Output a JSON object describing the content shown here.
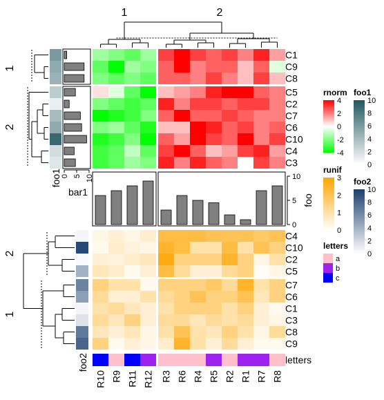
{
  "chart_data": {
    "type": "heatmap",
    "top_heatmap": {
      "column_split_labels": [
        "1",
        "2"
      ],
      "row_split_labels": [
        "1",
        "2"
      ],
      "rows_split1": [
        "C1",
        "C9",
        "C8"
      ],
      "rows_split2": [
        "C5",
        "C2",
        "C7",
        "C6",
        "C10",
        "C4",
        "C3"
      ],
      "columns_split1": [
        "R10",
        "R9",
        "R11",
        "R12"
      ],
      "columns_split2": [
        "R3",
        "R6",
        "R4",
        "R5",
        "R2",
        "R1",
        "R7",
        "R8"
      ],
      "values": [
        [
          -1.5,
          -2.0,
          -2.5,
          -1.5,
          3.0,
          4.0,
          3.0,
          2.5,
          3.0,
          2.0,
          3.5,
          1.5
        ],
        [
          -2.5,
          -4.0,
          -1.5,
          -2.0,
          2.5,
          4.0,
          2.0,
          2.5,
          2.5,
          1.0,
          2.5,
          -0.5
        ],
        [
          -2.0,
          -2.5,
          -2.0,
          -2.5,
          2.5,
          2.5,
          2.0,
          3.0,
          2.0,
          1.0,
          3.0,
          1.0
        ],
        [
          0.5,
          -0.5,
          -2.5,
          -4.0,
          1.0,
          1.5,
          2.0,
          3.5,
          4.0,
          4.0,
          2.5,
          2.0
        ],
        [
          -2.0,
          -2.5,
          -3.0,
          -2.5,
          3.5,
          2.0,
          3.0,
          3.0,
          2.5,
          3.0,
          3.0,
          2.0
        ],
        [
          -4.0,
          -3.5,
          -3.0,
          -2.0,
          2.5,
          4.0,
          2.5,
          2.5,
          3.0,
          2.5,
          2.0,
          2.0
        ],
        [
          -2.0,
          -1.5,
          -2.5,
          -3.5,
          1.0,
          1.0,
          4.0,
          3.5,
          2.5,
          3.0,
          2.0,
          2.5
        ],
        [
          -3.5,
          -3.0,
          -2.0,
          -4.0,
          2.5,
          1.5,
          4.0,
          3.0,
          2.5,
          4.0,
          2.0,
          3.0
        ],
        [
          -3.0,
          -2.5,
          -1.0,
          -2.5,
          3.0,
          4.0,
          2.5,
          1.0,
          1.5,
          3.0,
          3.5,
          1.5
        ],
        [
          -3.0,
          -2.5,
          -1.5,
          -2.0,
          3.5,
          2.0,
          3.5,
          2.5,
          2.0,
          0.0,
          3.0,
          2.0
        ]
      ],
      "legend": {
        "title": "rnorm",
        "ticks": [
          4,
          2,
          0,
          -2,
          -4
        ]
      }
    },
    "bar1": {
      "label": "bar1",
      "values": [
        1,
        8,
        8,
        4.5,
        2,
        6.5,
        7,
        9,
        4,
        4.5
      ],
      "axis_ticks": [
        0,
        5,
        10
      ],
      "range": [
        0,
        10
      ]
    },
    "foo1": {
      "label": "foo1",
      "values": [
        6,
        5,
        4.5,
        3,
        1,
        4,
        5,
        9,
        2,
        1.5
      ],
      "legend": {
        "title": "foo1",
        "ticks": [
          10,
          8,
          6,
          4,
          2,
          0
        ]
      },
      "range": [
        0,
        10
      ]
    },
    "foo_bars": {
      "label": "foo",
      "values": [
        6,
        7,
        8,
        9,
        3,
        6,
        5,
        4.5,
        2,
        1,
        7,
        8
      ],
      "axis_ticks": [
        0,
        5,
        10
      ],
      "range": [
        0,
        10
      ]
    },
    "bottom_heatmap": {
      "row_split_labels": [
        "2",
        "1"
      ],
      "rows_split2": [
        "C4",
        "C10",
        "C2",
        "C5"
      ],
      "rows_split1": [
        "C7",
        "C6",
        "C1",
        "C3",
        "C8",
        "C9"
      ],
      "values": [
        [
          0.3,
          0.5,
          0.3,
          0.6,
          2.2,
          2.2,
          2.2,
          2.0,
          2.0,
          2.0,
          1.8,
          2.0
        ],
        [
          0.2,
          0.6,
          0.4,
          0.3,
          2.5,
          2.2,
          1.0,
          1.0,
          2.2,
          1.0,
          2.0,
          1.5
        ],
        [
          0.5,
          0.4,
          0.6,
          0.8,
          2.8,
          1.5,
          1.5,
          1.5,
          2.5,
          1.5,
          0.3,
          1.0
        ],
        [
          0.8,
          0.6,
          0.2,
          0.5,
          2.2,
          1.2,
          0.5,
          0.5,
          1.2,
          1.5,
          0.1,
          0.3
        ],
        [
          1.5,
          1.0,
          1.0,
          0.2,
          1.5,
          1.5,
          1.5,
          1.8,
          1.2,
          2.5,
          1.0,
          1.5
        ],
        [
          1.2,
          0.5,
          0.5,
          1.0,
          1.2,
          1.5,
          2.0,
          1.5,
          1.5,
          2.0,
          0.8,
          1.5
        ],
        [
          1.0,
          1.2,
          0.8,
          0.5,
          1.0,
          1.5,
          1.5,
          1.5,
          1.0,
          1.5,
          0.5,
          0.2
        ],
        [
          1.2,
          0.8,
          1.5,
          0.5,
          1.2,
          1.2,
          0.8,
          1.2,
          1.0,
          1.2,
          0.5,
          0.3
        ],
        [
          0.8,
          0.5,
          0.8,
          0.3,
          1.0,
          2.0,
          1.0,
          0.8,
          1.5,
          1.0,
          0.3,
          1.2
        ],
        [
          1.5,
          0.2,
          0.5,
          0.3,
          0.6,
          2.5,
          1.0,
          0.5,
          1.2,
          0.5,
          0.2,
          0.2
        ]
      ],
      "legend": {
        "title": "runif",
        "ticks": [
          3,
          2,
          1,
          0
        ]
      }
    },
    "foo2": {
      "label": "foo2",
      "values": [
        0.5,
        9.5,
        0.3,
        4,
        6.5,
        5,
        0.5,
        1.5,
        7,
        8
      ],
      "legend": {
        "title": "foo2",
        "ticks": [
          10,
          8,
          6,
          4,
          2,
          0
        ]
      },
      "range": [
        0,
        10
      ]
    },
    "letters": {
      "label": "letters",
      "values": [
        "c",
        "a",
        "c",
        "b",
        "a",
        "a",
        "a",
        "b",
        "a",
        "b",
        "b",
        "a"
      ],
      "legend": {
        "title": "letters",
        "items": [
          {
            "key": "a",
            "color": "#ffc0cb"
          },
          {
            "key": "b",
            "color": "#a020f0"
          },
          {
            "key": "c",
            "color": "#0000ff"
          }
        ]
      }
    },
    "column_labels": [
      "R10",
      "R9",
      "R11",
      "R12",
      "R3",
      "R6",
      "R4",
      "R5",
      "R2",
      "R1",
      "R7",
      "R8"
    ]
  },
  "colors": {
    "rnorm_high": "#ff0000",
    "rnorm_mid": "#ffffff",
    "rnorm_low": "#00ff00",
    "runif_high": "#ffa500",
    "foo1_high": "#21575f",
    "foo2_high": "#1b3f6e",
    "bar_fill": "#808080"
  }
}
